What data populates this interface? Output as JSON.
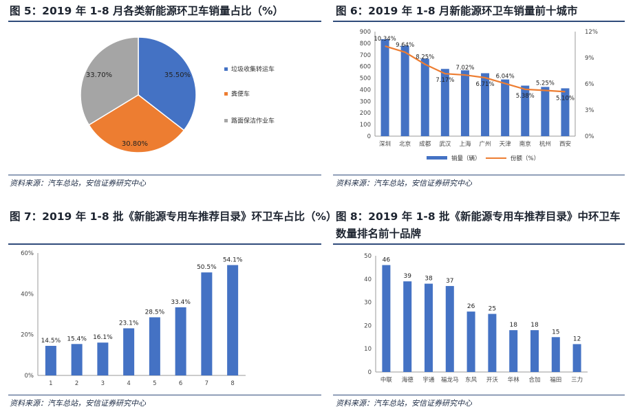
{
  "panels": {
    "p5": {
      "title": "图 5：2019 年 1-8 月各类新能源环卫车销量占比（%）",
      "source": "资料来源：汽车总站，安信证券研究中心"
    },
    "p6": {
      "title": "图 6：2019 年 1-8 月新能源环卫车销量前十城市",
      "source": "资料来源：汽车总站，安信证券研究中心",
      "legend_sales": "销量（辆）",
      "legend_share": "份额（%）"
    },
    "p7": {
      "title": "图 7：2019 年 1-8 批《新能源专用车推荐目录》环卫车占比（%）",
      "source": "资料来源：汽车总站，安信证券研究中心"
    },
    "p8": {
      "title_line1": "图 8：2019 年 1-8 批《新能源专用车推荐目录》中环卫车",
      "title_line2": "数量排名前十品牌",
      "source": "资料来源：汽车总站，安信证券研究中心"
    }
  },
  "colors": {
    "blue": "#4472c4",
    "orange": "#ed7d31",
    "gray": "#a5a5a5",
    "rule": "#2f4b7a"
  },
  "chart_data": [
    {
      "id": "p5",
      "type": "pie",
      "slices": [
        {
          "name": "垃圾收集转运车",
          "value": 35.5,
          "label": "35.50%",
          "color": "#4472c4"
        },
        {
          "name": "粪便车",
          "value": 30.8,
          "label": "30.80%",
          "color": "#ed7d31"
        },
        {
          "name": "路面保洁作业车",
          "value": 33.7,
          "label": "33.70%",
          "color": "#a5a5a5"
        }
      ]
    },
    {
      "id": "p6",
      "type": "bar",
      "categories": [
        "深圳",
        "北京",
        "成都",
        "武汉",
        "上海",
        "广州",
        "天津",
        "南京",
        "杭州",
        "西安"
      ],
      "series": [
        {
          "name": "销量（辆）",
          "type": "bar",
          "values": [
            835,
            778,
            667,
            579,
            567,
            542,
            488,
            435,
            424,
            412
          ],
          "color": "#4472c4"
        },
        {
          "name": "份额（%）",
          "type": "line",
          "axis": "right",
          "values": [
            10.34,
            9.64,
            8.25,
            7.17,
            7.02,
            6.71,
            6.04,
            5.38,
            5.25,
            5.1
          ],
          "labels": [
            "10.34%",
            "9.64%",
            "8.25%",
            "7.17%",
            "7.02%",
            "6.71%",
            "6.04%",
            "5.38%",
            "5.25%",
            "5.10%"
          ],
          "color": "#ed7d31"
        }
      ],
      "ylim": [
        0,
        900
      ],
      "yticks": [
        "0",
        "100",
        "200",
        "300",
        "400",
        "500",
        "600",
        "700",
        "800",
        "900"
      ],
      "y2lim": [
        0,
        12
      ],
      "y2ticks": [
        "0%",
        "3%",
        "6%",
        "9%",
        "12%"
      ]
    },
    {
      "id": "p7",
      "type": "bar",
      "categories": [
        "1",
        "2",
        "3",
        "4",
        "5",
        "6",
        "7",
        "8"
      ],
      "values": [
        14.5,
        15.4,
        16.1,
        23.1,
        28.5,
        33.4,
        50.5,
        54.1
      ],
      "labels": [
        "14.5%",
        "15.4%",
        "16.1%",
        "23.1%",
        "28.5%",
        "33.4%",
        "50.5%",
        "54.1%"
      ],
      "ylim": [
        0,
        60
      ],
      "yticks": [
        "0%",
        "20%",
        "40%",
        "60%"
      ],
      "color": "#4472c4"
    },
    {
      "id": "p8",
      "type": "bar",
      "categories": [
        "中联",
        "海德",
        "宇通",
        "福龙马",
        "东风",
        "开沃",
        "华林",
        "合加",
        "福田",
        "三力"
      ],
      "values": [
        46,
        39,
        38,
        37,
        26,
        25,
        18,
        18,
        15,
        12
      ],
      "labels": [
        "46",
        "39",
        "38",
        "37",
        "26",
        "25",
        "18",
        "18",
        "15",
        "12"
      ],
      "ylim": [
        0,
        50
      ],
      "yticks": [
        "0",
        "10",
        "20",
        "30",
        "40",
        "50"
      ],
      "color": "#4472c4"
    }
  ]
}
